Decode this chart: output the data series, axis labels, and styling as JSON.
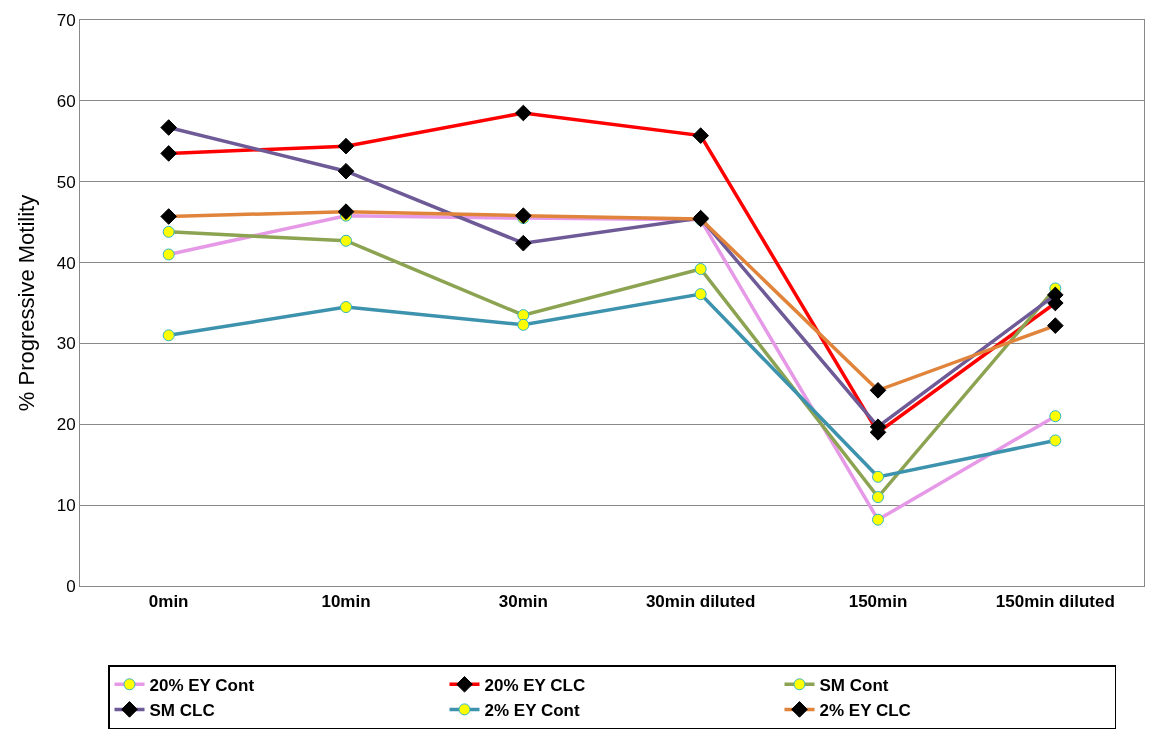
{
  "chart_data": {
    "type": "line",
    "ylabel": "% Progressive Motility",
    "categories": [
      "0min",
      "10min",
      "30min",
      "30min diluted",
      "150min",
      "150min diluted"
    ],
    "ylim": [
      0,
      70
    ],
    "yticks": [
      0,
      10,
      20,
      30,
      40,
      50,
      60,
      70
    ],
    "grid": "y",
    "legend": "bottom",
    "series": [
      {
        "name": "20% EY Cont",
        "color": "#e699e6",
        "marker": "circle",
        "values": [
          41,
          45.8,
          45.5,
          45.3,
          8.2,
          21
        ]
      },
      {
        "name": "20% EY CLC",
        "color": "#ff0000",
        "marker": "diamond",
        "values": [
          53.5,
          54.4,
          58.5,
          55.7,
          19,
          35
        ]
      },
      {
        "name": "SM Cont",
        "color": "#8ca352",
        "marker": "circle",
        "values": [
          43.8,
          42.7,
          33.5,
          39.2,
          11,
          36.8
        ]
      },
      {
        "name": "SM CLC",
        "color": "#6e5a96",
        "marker": "diamond",
        "values": [
          56.7,
          51.3,
          42.4,
          45.5,
          19.7,
          36
        ]
      },
      {
        "name": "2% EY Cont",
        "color": "#3d93ad",
        "marker": "circle",
        "values": [
          31,
          34.5,
          32.3,
          36.1,
          13.5,
          18
        ]
      },
      {
        "name": "2% EY CLC",
        "color": "#e0843c",
        "marker": "diamond",
        "values": [
          45.7,
          46.3,
          45.8,
          45.4,
          24.2,
          32.2
        ]
      }
    ]
  }
}
